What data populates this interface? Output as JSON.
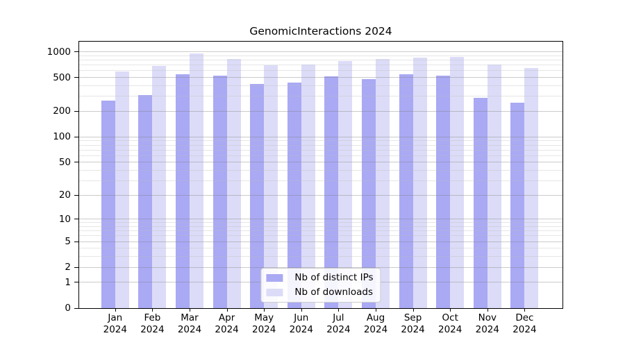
{
  "chart_data": {
    "type": "bar",
    "title": "GenomicInteractions 2024",
    "year_label": "2024",
    "categories": [
      "Jan",
      "Feb",
      "Mar",
      "Apr",
      "May",
      "Jun",
      "Jul",
      "Aug",
      "Sep",
      "Oct",
      "Nov",
      "Dec"
    ],
    "series": [
      {
        "name": "Nb of distinct IPs",
        "color": "#a9a9f4",
        "values": [
          267,
          313,
          550,
          525,
          421,
          438,
          516,
          481,
          546,
          525,
          290,
          254
        ]
      },
      {
        "name": "Nb of downloads",
        "color": "#dcdcf8",
        "values": [
          592,
          688,
          950,
          818,
          700,
          709,
          775,
          819,
          860,
          876,
          705,
          642
        ]
      }
    ],
    "yscale": "log1p",
    "ylim": [
      0,
      1320
    ],
    "yticks": [
      0,
      1,
      2,
      5,
      10,
      20,
      50,
      100,
      200,
      500,
      1000
    ],
    "minor_yticks": [
      3,
      4,
      6,
      7,
      8,
      9,
      30,
      40,
      60,
      70,
      80,
      90,
      300,
      400,
      600,
      700,
      800,
      900
    ],
    "grid": true,
    "legend_position": "lower center",
    "colors": {
      "bar_distinct_ips": "#a9a9f4",
      "bar_downloads": "#dcdcf8",
      "major_grid": "#cbcbcb",
      "minor_grid": "#e5e5e5",
      "axis": "#000000",
      "background": "#ffffff"
    }
  }
}
